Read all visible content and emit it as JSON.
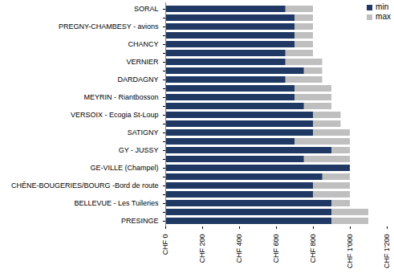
{
  "chart_data": {
    "type": "bar",
    "orientation": "horizontal",
    "stacked": false,
    "grid": false,
    "legend": "top-right",
    "categories": [
      "SORAL",
      null,
      "PREGNY-CHAMBESY - avions",
      null,
      "CHANCY",
      null,
      "VERNIER",
      null,
      "DARDAGNY",
      null,
      "MEYRIN - Riantbosson",
      null,
      "VERSOIX - Ecogia St-Loup",
      null,
      "SATIGNY",
      null,
      "GY - JUSSY",
      null,
      "GE-VILLE (Champel)",
      null,
      "CHÊNE-BOUGERIES/BOURG -Bord de route",
      null,
      "BELLEVUE - Les Tuileries",
      null,
      "PRESINGE"
    ],
    "series": [
      {
        "name": "min",
        "color": "#1F3864",
        "values": [
          650,
          700,
          700,
          700,
          700,
          650,
          650,
          750,
          650,
          700,
          700,
          750,
          800,
          800,
          800,
          700,
          900,
          750,
          1000,
          850,
          800,
          800,
          900,
          900,
          900
        ]
      },
      {
        "name": "max",
        "color": "#BFBFBF",
        "values": [
          800,
          800,
          800,
          800,
          800,
          800,
          850,
          850,
          850,
          900,
          900,
          900,
          950,
          950,
          1000,
          1000,
          1000,
          1000,
          1000,
          1000,
          1000,
          1000,
          1000,
          1100,
          1100
        ]
      }
    ],
    "xlim": [
      0,
      1200
    ],
    "xticks": [
      {
        "value": 0,
        "label": "CHF 0"
      },
      {
        "value": 200,
        "label": "CHF 200"
      },
      {
        "value": 400,
        "label": "CHF 400"
      },
      {
        "value": 600,
        "label": "CHF 600"
      },
      {
        "value": 800,
        "label": "CHF 800"
      },
      {
        "value": 1000,
        "label": "CHF 1'000"
      },
      {
        "value": 1200,
        "label": "CHF 1'200"
      }
    ]
  }
}
